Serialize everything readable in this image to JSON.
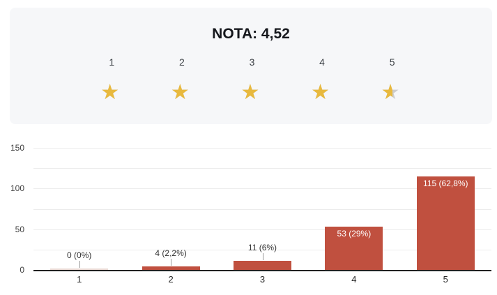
{
  "summary": {
    "title": "NOTA: 4,52",
    "rating_value": "4,52",
    "scale_labels": [
      "1",
      "2",
      "3",
      "4",
      "5"
    ],
    "star_fill_percents": [
      100,
      100,
      100,
      100,
      52
    ],
    "colors": {
      "panel_bg": "#f6f7f9",
      "star_filled": "#e8b93e",
      "star_empty": "#cdcdcd"
    }
  },
  "chart_data": {
    "type": "bar",
    "title": "",
    "xlabel": "",
    "ylabel": "",
    "categories": [
      "1",
      "2",
      "3",
      "4",
      "5"
    ],
    "values": [
      0,
      4,
      11,
      53,
      115
    ],
    "bar_labels": [
      "0 (0%)",
      "4 (2,2%)",
      "11 (6%)",
      "53 (29%)",
      "115 (62,8%)"
    ],
    "label_placement": [
      "outside",
      "outside",
      "outside",
      "inside",
      "inside"
    ],
    "ylim": [
      0,
      150
    ],
    "yticks": [
      0,
      50,
      100,
      150
    ],
    "grid_step": 25,
    "grid": true,
    "legend_position": "none",
    "colors": {
      "bar": "#c0503f",
      "zero_bar": "#e9d9d4",
      "grid": "#ececec",
      "axis": "#212121"
    }
  }
}
